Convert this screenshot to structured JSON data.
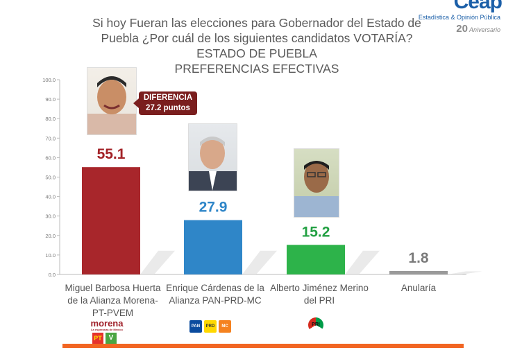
{
  "title_lines": [
    "Si hoy Fueran las elecciones para Gobernador del Estado de",
    "Puebla ¿Por cuál de los siguientes candidatos VOTARÍA?",
    "ESTADO DE PUEBLA",
    "PREFERENCIAS EFECTIVAS"
  ],
  "brand": {
    "logo": "Ceap",
    "tagline": "Estadística & Opinión Pública",
    "anniversary_number": "20",
    "anniversary_text": "Aniversario"
  },
  "difference_callout": {
    "line1": "DIFERENCIA",
    "line2": "27.2 puntos"
  },
  "candidates": [
    {
      "label_lines": [
        "Miguel Barbosa Huerta",
        "de la Alianza Morena-",
        "PT-PVEM"
      ],
      "party_marks": [
        "morena",
        "PT",
        "V"
      ]
    },
    {
      "label_lines": [
        "Enrique Cárdenas de la",
        "Alianza PAN-PRD-MC"
      ],
      "party_marks": [
        "PAN",
        "PRD",
        "MC"
      ]
    },
    {
      "label_lines": [
        "Alberto Jiménez Merino",
        "del PRI"
      ],
      "party_marks": [
        "PRI"
      ]
    },
    {
      "label_lines": [
        "Anularía"
      ],
      "party_marks": []
    }
  ],
  "morena_tagline": "La esperanza de México",
  "chart_data": {
    "type": "bar",
    "categories": [
      "Miguel Barbosa Huerta de la Alianza Morena-PT-PVEM",
      "Enrique Cárdenas de la Alianza PAN-PRD-MC",
      "Alberto Jiménez Merino del PRI",
      "Anularía"
    ],
    "values": [
      55.1,
      27.9,
      15.2,
      1.8
    ],
    "value_labels": [
      "55.1",
      "27.9",
      "15.2",
      "1.8"
    ],
    "colors": [
      "#a8262b",
      "#2f86c8",
      "#2db34a",
      "#9a9a9a"
    ],
    "label_colors": [
      "#a32227",
      "#2f86c8",
      "#23a043",
      "#7a7a7a"
    ],
    "ylim": [
      0,
      100
    ],
    "yticks": [
      "0.0",
      "10.0",
      "20.0",
      "30.0",
      "40.0",
      "50.0",
      "60.0",
      "70.0",
      "80.0",
      "90.0",
      "100.0"
    ],
    "grid": false,
    "title": "",
    "xlabel": "",
    "ylabel": ""
  }
}
